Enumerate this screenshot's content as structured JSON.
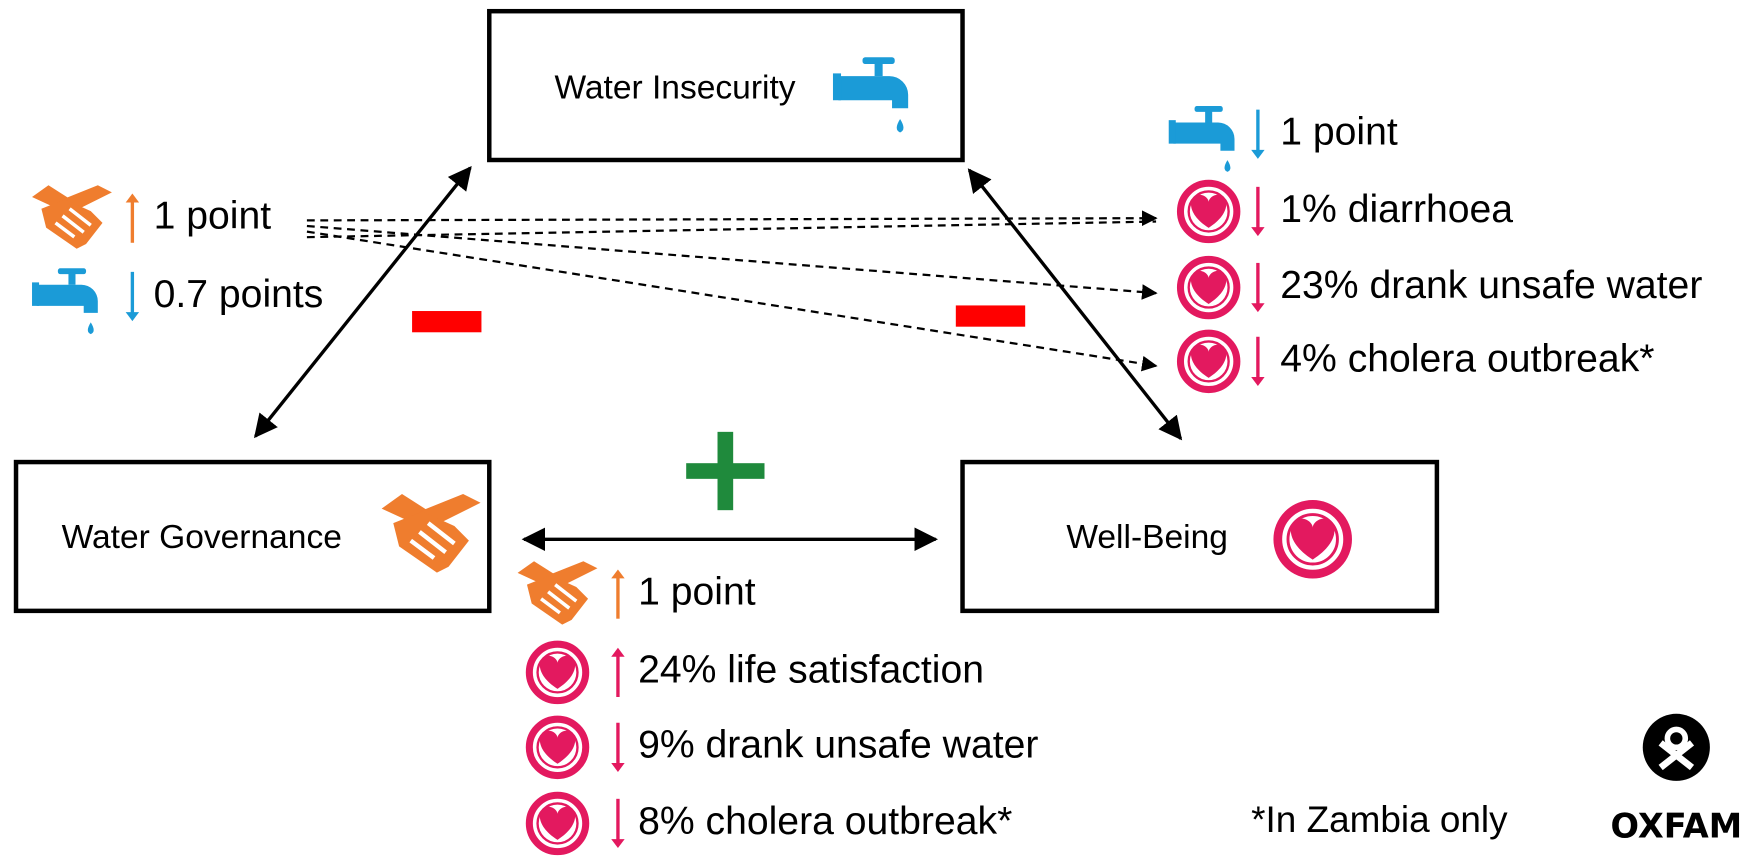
{
  "nodes": [
    {
      "label": "Water Insecurity"
    },
    {
      "label": "Water Governance"
    },
    {
      "label": "Well-Being"
    }
  ],
  "left_effects": [
    "1 point",
    "0.7 points"
  ],
  "right_effects": [
    "1 point",
    "1% diarrhoea",
    "23% drank unsafe water",
    "4% cholera outbreak*"
  ],
  "bottom_effects": [
    "1 point",
    "24% life satisfaction",
    "9% drank unsafe water",
    "8% cholera outbreak*"
  ],
  "footnote": "*In Zambia only",
  "logo": "OXFAM"
}
